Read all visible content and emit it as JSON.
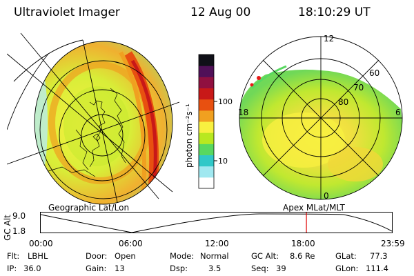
{
  "header": {
    "instrument": "Ultraviolet Imager",
    "date": "12 Aug 00",
    "time": "18:10:29 UT"
  },
  "left_panel": {
    "projection_label": "Geographic Lat/Lon"
  },
  "right_panel": {
    "projection_label": "Apex MLat/MLT",
    "mlt_labels": [
      "12",
      "6",
      "0",
      "18"
    ],
    "mlat_labels": [
      "60",
      "70",
      "80"
    ]
  },
  "colorbar": {
    "unit_label": "photon cm⁻²s⁻¹",
    "tick_labels": [
      "100",
      "10"
    ],
    "colors": [
      "#ffffff",
      "#a0e8f0",
      "#30c8c8",
      "#58d860",
      "#b8e820",
      "#f8f040",
      "#f0a020",
      "#e85010",
      "#c81818",
      "#901040",
      "#501058",
      "#101018"
    ]
  },
  "timeline": {
    "axis_label": "GC Alt",
    "y_ticks": [
      "9.0",
      "1.8"
    ],
    "x_ticks": [
      "00:00",
      "06:00",
      "12:00",
      "18:00",
      "23:59"
    ],
    "current_time_fraction": 0.758,
    "marker_color": "#e00000"
  },
  "status": {
    "flt_label": "Flt:",
    "flt_value": "LBHL",
    "ip_label": "IP:",
    "ip_value": "36.0",
    "door_label": "Door:",
    "door_value": "Open",
    "gain_label": "Gain:",
    "gain_value": "13",
    "mode_label": "Mode:",
    "mode_value": "Normal",
    "dsp_label": "Dsp:",
    "dsp_value": "3.5",
    "gcalt_label": "GC Alt:",
    "gcalt_value": "8.6 Re",
    "seq_label": "Seq:",
    "seq_value": "39",
    "glat_label": "GLat:",
    "glat_value": "77.3",
    "glon_label": "GLon:",
    "glon_value": "111.4"
  }
}
